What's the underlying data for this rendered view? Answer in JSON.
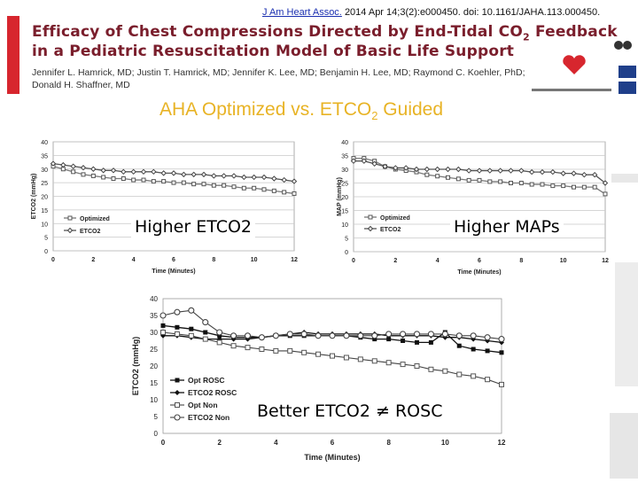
{
  "header": {
    "citation_journal": "J Am Heart Assoc.",
    "citation_rest": "2014 Apr 14;3(2):e000450. doi: 10.1161/JAHA.113.000450.",
    "title_line1": "Efficacy of Chest Compressions Directed by End-Tidal CO",
    "title_line1_sub": "2",
    "title_line1_end": " Feedback",
    "title_line2": "in a Pediatric Resuscitation Model of Basic Life Support",
    "authors_line1": "Jennifer L. Hamrick, MD; Justin T. Hamrick, MD; Jennifer K. Lee, MD; Benjamin H. Lee, MD; Raymond C. Koehler, PhD;",
    "authors_line2": "Donald H. Shaffner, MD",
    "subtitle_main": "AHA Optimized vs. ETCO",
    "subtitle_sub": "2",
    "subtitle_end": " Guided"
  },
  "overlays": {
    "left": "Higher ETCO2",
    "right": "Higher MAPs",
    "bottom": "Better ETCO2 ≠ ROSC"
  },
  "colors": {
    "red_bar": "#d7262e",
    "title": "#7a1e2c",
    "subtitle": "#e8b325",
    "link": "#1a2fb0"
  },
  "chart_data": [
    {
      "type": "line",
      "xlabel": "Time (Minutes)",
      "ylabel": "ETCO2 (mmHg)",
      "xlim": [
        0,
        12
      ],
      "ylim": [
        0,
        40
      ],
      "xticks": [
        "0",
        "2",
        "4",
        "6",
        "8",
        "10",
        "12"
      ],
      "yticks": [
        "0",
        "5",
        "10",
        "15",
        "20",
        "25",
        "30",
        "35",
        "40"
      ],
      "grid": true,
      "x": [
        0,
        0.5,
        1,
        1.5,
        2,
        2.5,
        3,
        3.5,
        4,
        4.5,
        5,
        5.5,
        6,
        6.5,
        7,
        7.5,
        8,
        8.5,
        9,
        9.5,
        10,
        10.5,
        11,
        11.5,
        12
      ],
      "series": [
        {
          "name": "Optimized",
          "values": [
            31,
            30,
            29,
            28,
            27.5,
            27,
            26.5,
            26.5,
            26,
            26,
            25.5,
            25.5,
            25,
            25,
            24.5,
            24.5,
            24,
            24,
            23.5,
            23,
            23,
            22.5,
            22,
            21.5,
            21
          ]
        },
        {
          "name": "ETCO2",
          "values": [
            32,
            31.5,
            31,
            30.5,
            30,
            29.5,
            29.5,
            29,
            29,
            29,
            29,
            28.5,
            28.5,
            28,
            28,
            28,
            27.5,
            27.5,
            27.5,
            27,
            27,
            27,
            26.5,
            26,
            25.5
          ]
        }
      ]
    },
    {
      "type": "line",
      "xlabel": "Time (Minutes)",
      "ylabel": "MAP (mmHg)",
      "xlim": [
        0,
        12
      ],
      "ylim": [
        0,
        40
      ],
      "xticks": [
        "0",
        "2",
        "4",
        "6",
        "8",
        "10",
        "12"
      ],
      "yticks": [
        "0",
        "5",
        "10",
        "15",
        "20",
        "25",
        "30",
        "35",
        "40"
      ],
      "grid": true,
      "x": [
        0,
        0.5,
        1,
        1.5,
        2,
        2.5,
        3,
        3.5,
        4,
        4.5,
        5,
        5.5,
        6,
        6.5,
        7,
        7.5,
        8,
        8.5,
        9,
        9.5,
        10,
        10.5,
        11,
        11.5,
        12
      ],
      "series": [
        {
          "name": "Optimized",
          "values": [
            34,
            34,
            33,
            31,
            30,
            29.5,
            29,
            28,
            27.5,
            27,
            26.5,
            26,
            26,
            25.5,
            25.5,
            25,
            25,
            24.5,
            24.5,
            24,
            24,
            23.5,
            23.5,
            23.5,
            21
          ]
        },
        {
          "name": "ETCO2",
          "values": [
            33,
            33,
            32,
            31,
            30.5,
            30.5,
            30,
            30,
            30,
            30,
            30,
            29.5,
            29.5,
            29.5,
            29.5,
            29.5,
            29.5,
            29,
            29,
            29,
            28.5,
            28.5,
            28,
            28,
            25
          ]
        }
      ]
    },
    {
      "type": "line",
      "xlabel": "Time (Minutes)",
      "ylabel": "ETCO2 (mmHg)",
      "xlim": [
        0,
        12
      ],
      "ylim": [
        0,
        40
      ],
      "xticks": [
        "0",
        "2",
        "4",
        "6",
        "8",
        "10",
        "12"
      ],
      "yticks": [
        "0",
        "5",
        "10",
        "15",
        "20",
        "25",
        "30",
        "35",
        "40"
      ],
      "grid": false,
      "legend_position": "bottom-left",
      "x": [
        0,
        0.5,
        1,
        1.5,
        2,
        2.5,
        3,
        3.5,
        4,
        4.5,
        5,
        5.5,
        6,
        6.5,
        7,
        7.5,
        8,
        8.5,
        9,
        9.5,
        10,
        10.5,
        11,
        11.5,
        12
      ],
      "series": [
        {
          "name": "Opt ROSC",
          "values": [
            32,
            31.5,
            31,
            30,
            29,
            28.5,
            28.5,
            28.5,
            29,
            29,
            29,
            29,
            29,
            29,
            28.5,
            28,
            28,
            27.5,
            27,
            27,
            30,
            26,
            25,
            24.5,
            24
          ]
        },
        {
          "name": "ETCO2 ROSC",
          "values": [
            29,
            29,
            28.5,
            28,
            28,
            28,
            28,
            28.5,
            29,
            29.5,
            30,
            29.5,
            29.5,
            29.5,
            29.5,
            29.5,
            29,
            29,
            29,
            29,
            28.5,
            28.5,
            28,
            27.5,
            27
          ]
        },
        {
          "name": "Opt Non",
          "values": [
            30,
            29.5,
            29,
            28,
            27,
            26,
            25.5,
            25,
            24.5,
            24.5,
            24,
            23.5,
            23,
            22.5,
            22,
            21.5,
            21,
            20.5,
            20,
            19,
            18.5,
            17.5,
            17,
            16,
            14.5
          ]
        },
        {
          "name": "ETCO2 Non",
          "values": [
            35,
            36,
            36.5,
            33,
            30,
            29,
            29,
            28.5,
            29,
            29.5,
            29.5,
            29,
            29,
            29,
            29,
            29,
            29.5,
            29.5,
            29.5,
            29.5,
            29.5,
            29,
            29,
            28.5,
            28
          ]
        }
      ]
    }
  ]
}
